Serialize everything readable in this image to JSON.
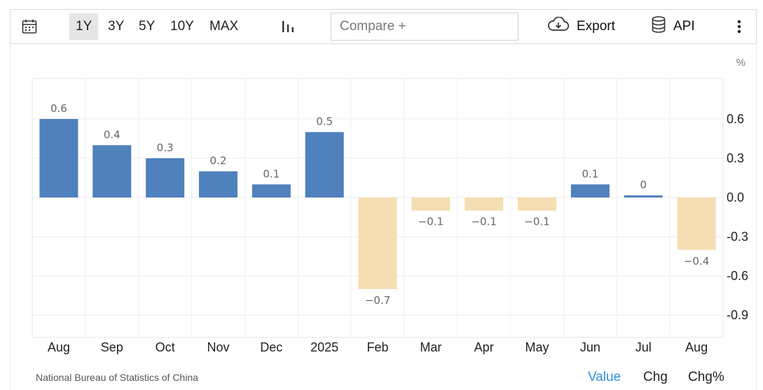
{
  "toolbar": {
    "ranges": [
      "1Y",
      "3Y",
      "5Y",
      "10Y",
      "MAX"
    ],
    "active_range": "1Y",
    "compare_placeholder": "Compare +",
    "export_label": "Export",
    "api_label": "API",
    "icons": {
      "calendar": "calendar-icon",
      "bars": "bar-chart-icon",
      "export": "cloud-download-icon",
      "api": "database-icon",
      "more": "more-vertical-icon"
    }
  },
  "chart_data": {
    "type": "bar",
    "categories": [
      "Aug",
      "Sep",
      "Oct",
      "Nov",
      "Dec",
      "2025",
      "Feb",
      "Mar",
      "Apr",
      "May",
      "Jun",
      "Jul",
      "Aug"
    ],
    "values": [
      0.6,
      0.4,
      0.3,
      0.2,
      0.1,
      0.5,
      -0.7,
      -0.1,
      -0.1,
      -0.1,
      0.1,
      0.0,
      -0.4
    ],
    "value_labels": [
      "0.6",
      "0.4",
      "0.3",
      "0.2",
      "0.1",
      "0.5",
      "−0.7",
      "−0.1",
      "−0.1",
      "−0.1",
      "0.1",
      "0",
      "−0.4"
    ],
    "unit_label": "%",
    "yticks": [
      0.6,
      0.3,
      0.0,
      -0.3,
      -0.6,
      -0.9
    ],
    "ytick_labels": [
      "0.6",
      "0.3",
      "0.0",
      "-0.3",
      "-0.6",
      "-0.9"
    ],
    "ylim": [
      -1.07,
      0.91
    ],
    "colors": {
      "positive": "#4f81bd",
      "negative": "#f5deb3"
    },
    "grid": true,
    "yaxis_side": "right"
  },
  "footer": {
    "source": "National Bureau of Statistics of China",
    "modes": [
      "Value",
      "Chg",
      "Chg%"
    ],
    "active_mode": "Value"
  }
}
